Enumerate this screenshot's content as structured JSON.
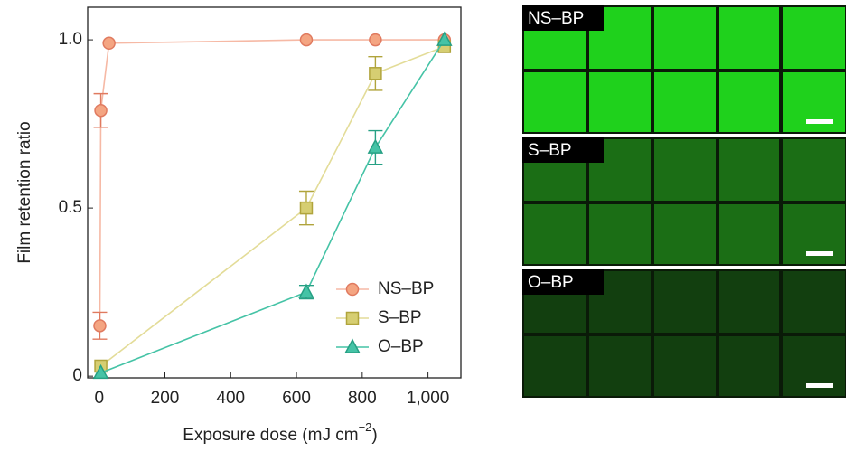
{
  "chart_data": {
    "type": "line",
    "x_label": {
      "text": "Exposure dose (mJ cm",
      "sup": "−2",
      "end": ")"
    },
    "y_label": "Film retention ratio",
    "xlim": [
      -35,
      1100
    ],
    "ylim": [
      -0.005,
      1.097
    ],
    "xticks": [
      0,
      200,
      400,
      600,
      800,
      {
        "value": 1000,
        "label": "1,000"
      }
    ],
    "yticks": [
      0,
      0.5,
      {
        "value": 1,
        "label": "1.0"
      }
    ],
    "legend": "lower right",
    "series": [
      {
        "name": "NS–BP",
        "color": "#f4a582",
        "edge": "#e07a5f",
        "line": "#f6b9a5",
        "marker": "circle",
        "x": [
          2,
          5,
          30,
          630,
          840,
          1050
        ],
        "values": [
          0.15,
          0.79,
          0.99,
          1.0,
          1.0,
          1.0
        ],
        "errors": [
          0.04,
          0.05,
          null,
          null,
          null,
          null
        ]
      },
      {
        "name": "S–BP",
        "color": "#d6ce72",
        "edge": "#b0a43c",
        "line": "#e3dc98",
        "marker": "square",
        "x": [
          5,
          630,
          840,
          1050
        ],
        "values": [
          0.03,
          0.5,
          0.9,
          0.98
        ],
        "errors": [
          null,
          0.05,
          0.05,
          null
        ]
      },
      {
        "name": "O–BP",
        "color": "#45c3a6",
        "edge": "#26a084",
        "line": "#45c3a6",
        "marker": "triangle",
        "x": [
          5,
          630,
          840,
          1050
        ],
        "values": [
          0.01,
          0.25,
          0.68,
          1.0
        ],
        "errors": [
          null,
          0.02,
          0.05,
          null
        ]
      }
    ]
  },
  "images": [
    {
      "label": "NS–BP",
      "color": "#1fd11c"
    },
    {
      "label": "S–BP",
      "color": "#1b6e15"
    },
    {
      "label": "O–BP",
      "color": "#123f0f"
    }
  ]
}
